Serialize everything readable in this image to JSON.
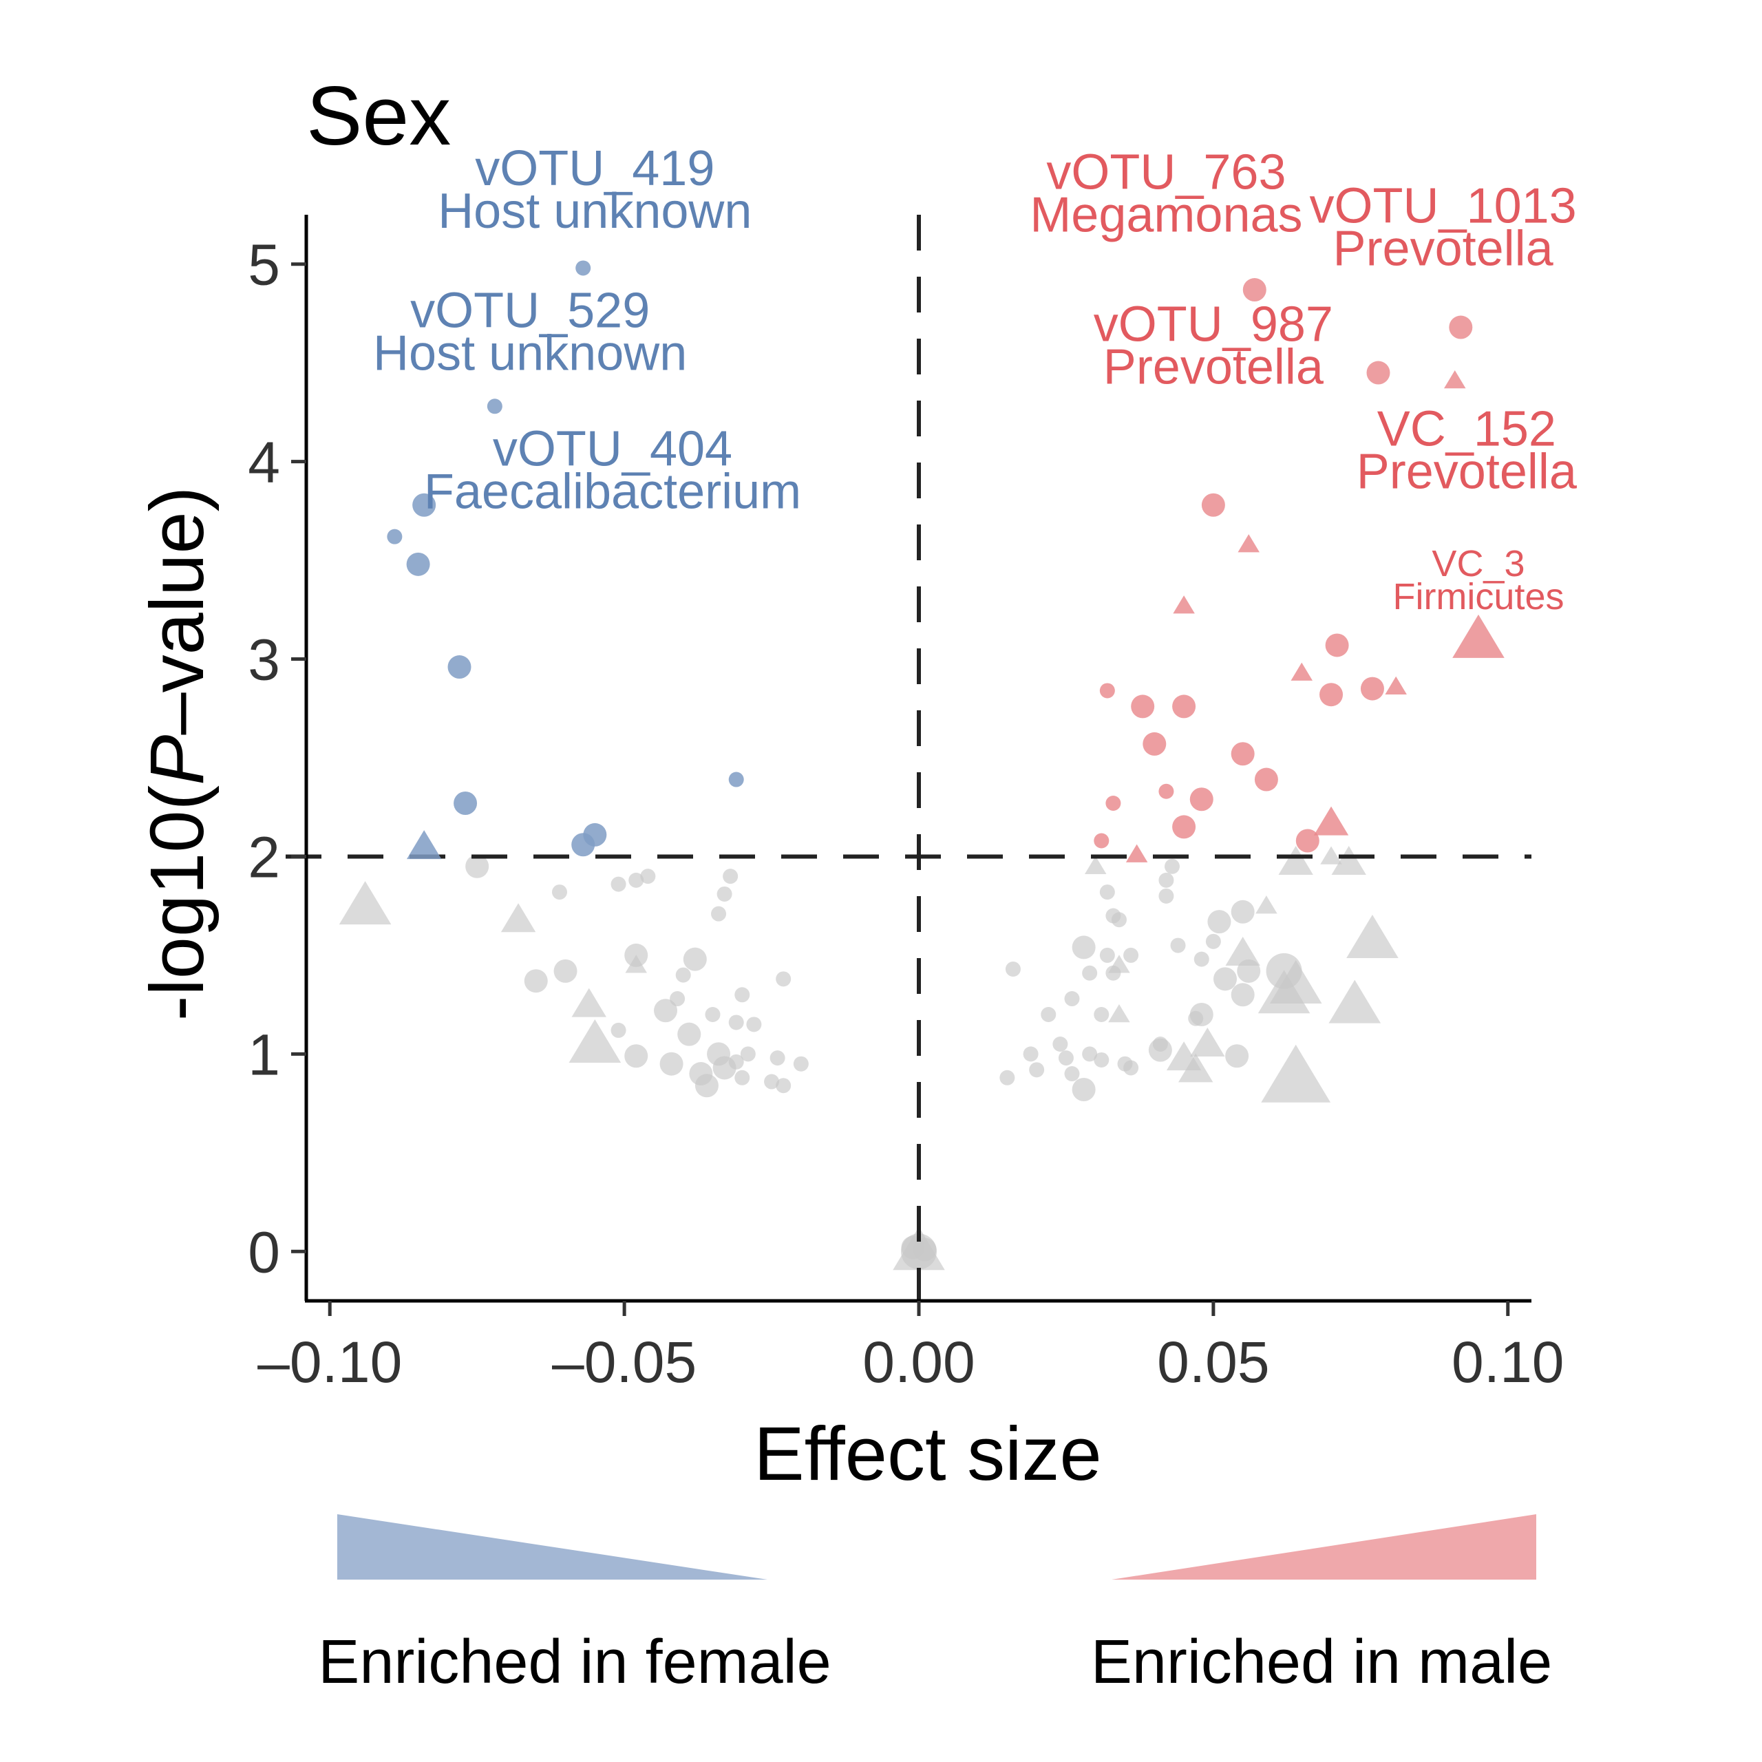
{
  "chart_data": {
    "type": "scatter",
    "title": "Sex",
    "xlabel": "Effect size",
    "ylabel_prefix": "-log10(",
    "ylabel_italic": "P",
    "ylabel_suffix": "–value)",
    "xlim": [
      -0.104,
      0.104
    ],
    "ylim": [
      -0.25,
      5.25
    ],
    "x_ticks": [
      -0.1,
      -0.05,
      0.0,
      0.05,
      0.1
    ],
    "x_tick_labels": [
      "–0.10",
      "–0.05",
      "0.00",
      "0.05",
      "0.10"
    ],
    "y_ticks": [
      0,
      1,
      2,
      3,
      4,
      5
    ],
    "y_tick_labels": [
      "0",
      "1",
      "2",
      "3",
      "4",
      "5"
    ],
    "threshold_y": 2,
    "threshold_x": 0,
    "grid": false,
    "colors": {
      "female": "#7f9cc4",
      "male": "#e8868a",
      "ns": "#c8c8c8",
      "female_text": "#5e82b3",
      "male_text": "#e25a5f"
    },
    "legend": {
      "female_label": "Enriched in female",
      "male_label": "Enriched in male"
    },
    "series": [
      {
        "group": "female",
        "points": [
          {
            "x": -0.057,
            "y": 4.98,
            "shape": "circle",
            "size": 1
          },
          {
            "x": -0.072,
            "y": 4.28,
            "shape": "circle",
            "size": 1
          },
          {
            "x": -0.084,
            "y": 3.78,
            "shape": "circle",
            "size": 2
          },
          {
            "x": -0.089,
            "y": 3.62,
            "shape": "circle",
            "size": 1
          },
          {
            "x": -0.085,
            "y": 3.48,
            "shape": "circle",
            "size": 2
          },
          {
            "x": -0.078,
            "y": 2.96,
            "shape": "circle",
            "size": 2
          },
          {
            "x": -0.077,
            "y": 2.27,
            "shape": "circle",
            "size": 2
          },
          {
            "x": -0.031,
            "y": 2.39,
            "shape": "circle",
            "size": 1
          },
          {
            "x": -0.055,
            "y": 2.11,
            "shape": "circle",
            "size": 2
          },
          {
            "x": -0.057,
            "y": 2.06,
            "shape": "circle",
            "size": 2
          },
          {
            "x": -0.084,
            "y": 2.05,
            "shape": "triangle",
            "size": 2
          }
        ]
      },
      {
        "group": "male",
        "points": [
          {
            "x": 0.057,
            "y": 4.87,
            "shape": "circle",
            "size": 2
          },
          {
            "x": 0.092,
            "y": 4.68,
            "shape": "circle",
            "size": 2
          },
          {
            "x": 0.078,
            "y": 4.45,
            "shape": "circle",
            "size": 2
          },
          {
            "x": 0.091,
            "y": 4.41,
            "shape": "triangle",
            "size": 1
          },
          {
            "x": 0.05,
            "y": 3.78,
            "shape": "circle",
            "size": 2
          },
          {
            "x": 0.056,
            "y": 3.58,
            "shape": "triangle",
            "size": 1
          },
          {
            "x": 0.045,
            "y": 3.27,
            "shape": "triangle",
            "size": 1
          },
          {
            "x": 0.095,
            "y": 3.1,
            "shape": "triangle",
            "size": 3
          },
          {
            "x": 0.071,
            "y": 3.07,
            "shape": "circle",
            "size": 2
          },
          {
            "x": 0.065,
            "y": 2.93,
            "shape": "triangle",
            "size": 1
          },
          {
            "x": 0.07,
            "y": 2.82,
            "shape": "circle",
            "size": 2
          },
          {
            "x": 0.077,
            "y": 2.85,
            "shape": "circle",
            "size": 2
          },
          {
            "x": 0.081,
            "y": 2.86,
            "shape": "triangle",
            "size": 1
          },
          {
            "x": 0.032,
            "y": 2.84,
            "shape": "circle",
            "size": 1
          },
          {
            "x": 0.038,
            "y": 2.76,
            "shape": "circle",
            "size": 2
          },
          {
            "x": 0.045,
            "y": 2.76,
            "shape": "circle",
            "size": 2
          },
          {
            "x": 0.04,
            "y": 2.57,
            "shape": "circle",
            "size": 2
          },
          {
            "x": 0.055,
            "y": 2.52,
            "shape": "circle",
            "size": 2
          },
          {
            "x": 0.059,
            "y": 2.39,
            "shape": "circle",
            "size": 2
          },
          {
            "x": 0.042,
            "y": 2.33,
            "shape": "circle",
            "size": 1
          },
          {
            "x": 0.048,
            "y": 2.29,
            "shape": "circle",
            "size": 2
          },
          {
            "x": 0.033,
            "y": 2.27,
            "shape": "circle",
            "size": 1
          },
          {
            "x": 0.045,
            "y": 2.15,
            "shape": "circle",
            "size": 2
          },
          {
            "x": 0.07,
            "y": 2.17,
            "shape": "triangle",
            "size": 2
          },
          {
            "x": 0.031,
            "y": 2.08,
            "shape": "circle",
            "size": 1
          },
          {
            "x": 0.066,
            "y": 2.08,
            "shape": "circle",
            "size": 2
          },
          {
            "x": 0.037,
            "y": 2.01,
            "shape": "triangle",
            "size": 1
          }
        ]
      },
      {
        "group": "ns",
        "points": [
          {
            "x": -0.094,
            "y": 1.75,
            "shape": "triangle",
            "size": 3
          },
          {
            "x": -0.075,
            "y": 1.95,
            "shape": "circle",
            "size": 2
          },
          {
            "x": -0.068,
            "y": 1.68,
            "shape": "triangle",
            "size": 2
          },
          {
            "x": -0.061,
            "y": 1.82,
            "shape": "circle",
            "size": 1
          },
          {
            "x": -0.065,
            "y": 1.37,
            "shape": "circle",
            "size": 2
          },
          {
            "x": -0.06,
            "y": 1.42,
            "shape": "circle",
            "size": 2
          },
          {
            "x": -0.056,
            "y": 1.25,
            "shape": "triangle",
            "size": 2
          },
          {
            "x": -0.055,
            "y": 1.05,
            "shape": "triangle",
            "size": 3
          },
          {
            "x": -0.051,
            "y": 1.86,
            "shape": "circle",
            "size": 1
          },
          {
            "x": -0.048,
            "y": 1.88,
            "shape": "circle",
            "size": 1
          },
          {
            "x": -0.046,
            "y": 1.9,
            "shape": "circle",
            "size": 1
          },
          {
            "x": -0.048,
            "y": 1.5,
            "shape": "circle",
            "size": 2
          },
          {
            "x": -0.048,
            "y": 1.45,
            "shape": "triangle",
            "size": 1
          },
          {
            "x": -0.051,
            "y": 1.12,
            "shape": "circle",
            "size": 1
          },
          {
            "x": -0.048,
            "y": 0.99,
            "shape": "circle",
            "size": 2
          },
          {
            "x": -0.043,
            "y": 1.22,
            "shape": "circle",
            "size": 2
          },
          {
            "x": -0.041,
            "y": 1.28,
            "shape": "circle",
            "size": 1
          },
          {
            "x": -0.039,
            "y": 1.1,
            "shape": "circle",
            "size": 2
          },
          {
            "x": -0.042,
            "y": 0.95,
            "shape": "circle",
            "size": 2
          },
          {
            "x": -0.038,
            "y": 1.48,
            "shape": "circle",
            "size": 2
          },
          {
            "x": -0.04,
            "y": 1.4,
            "shape": "circle",
            "size": 1
          },
          {
            "x": -0.037,
            "y": 0.9,
            "shape": "circle",
            "size": 2
          },
          {
            "x": -0.035,
            "y": 1.2,
            "shape": "circle",
            "size": 1
          },
          {
            "x": -0.036,
            "y": 0.84,
            "shape": "circle",
            "size": 2
          },
          {
            "x": -0.034,
            "y": 1.0,
            "shape": "circle",
            "size": 2
          },
          {
            "x": -0.033,
            "y": 0.93,
            "shape": "circle",
            "size": 2
          },
          {
            "x": -0.033,
            "y": 1.81,
            "shape": "circle",
            "size": 1
          },
          {
            "x": -0.034,
            "y": 1.71,
            "shape": "circle",
            "size": 1
          },
          {
            "x": -0.032,
            "y": 1.9,
            "shape": "circle",
            "size": 1
          },
          {
            "x": -0.031,
            "y": 1.16,
            "shape": "circle",
            "size": 1
          },
          {
            "x": -0.03,
            "y": 1.3,
            "shape": "circle",
            "size": 1
          },
          {
            "x": -0.028,
            "y": 1.15,
            "shape": "circle",
            "size": 1
          },
          {
            "x": -0.031,
            "y": 0.96,
            "shape": "circle",
            "size": 1
          },
          {
            "x": -0.03,
            "y": 0.88,
            "shape": "circle",
            "size": 1
          },
          {
            "x": -0.029,
            "y": 1.0,
            "shape": "circle",
            "size": 1
          },
          {
            "x": -0.023,
            "y": 1.38,
            "shape": "circle",
            "size": 1
          },
          {
            "x": -0.024,
            "y": 0.98,
            "shape": "circle",
            "size": 1
          },
          {
            "x": -0.025,
            "y": 0.86,
            "shape": "circle",
            "size": 1
          },
          {
            "x": -0.023,
            "y": 0.84,
            "shape": "circle",
            "size": 1
          },
          {
            "x": -0.02,
            "y": 0.95,
            "shape": "circle",
            "size": 1
          },
          {
            "x": 0.016,
            "y": 1.43,
            "shape": "circle",
            "size": 1
          },
          {
            "x": 0.015,
            "y": 0.88,
            "shape": "circle",
            "size": 1
          },
          {
            "x": 0.019,
            "y": 1.0,
            "shape": "circle",
            "size": 1
          },
          {
            "x": 0.02,
            "y": 0.92,
            "shape": "circle",
            "size": 1
          },
          {
            "x": 0.022,
            "y": 1.2,
            "shape": "circle",
            "size": 1
          },
          {
            "x": 0.024,
            "y": 1.05,
            "shape": "circle",
            "size": 1
          },
          {
            "x": 0.025,
            "y": 0.98,
            "shape": "circle",
            "size": 1
          },
          {
            "x": 0.026,
            "y": 0.9,
            "shape": "circle",
            "size": 1
          },
          {
            "x": 0.026,
            "y": 1.28,
            "shape": "circle",
            "size": 1
          },
          {
            "x": 0.028,
            "y": 0.82,
            "shape": "circle",
            "size": 2
          },
          {
            "x": 0.029,
            "y": 1.0,
            "shape": "circle",
            "size": 1
          },
          {
            "x": 0.028,
            "y": 1.54,
            "shape": "circle",
            "size": 2
          },
          {
            "x": 0.029,
            "y": 1.41,
            "shape": "circle",
            "size": 1
          },
          {
            "x": 0.031,
            "y": 1.2,
            "shape": "circle",
            "size": 1
          },
          {
            "x": 0.031,
            "y": 0.97,
            "shape": "circle",
            "size": 1
          },
          {
            "x": 0.03,
            "y": 1.95,
            "shape": "triangle",
            "size": 1
          },
          {
            "x": 0.032,
            "y": 1.82,
            "shape": "circle",
            "size": 1
          },
          {
            "x": 0.032,
            "y": 1.5,
            "shape": "circle",
            "size": 1
          },
          {
            "x": 0.033,
            "y": 1.41,
            "shape": "circle",
            "size": 1
          },
          {
            "x": 0.033,
            "y": 1.7,
            "shape": "circle",
            "size": 1
          },
          {
            "x": 0.034,
            "y": 1.68,
            "shape": "circle",
            "size": 1
          },
          {
            "x": 0.034,
            "y": 1.45,
            "shape": "triangle",
            "size": 1
          },
          {
            "x": 0.034,
            "y": 1.2,
            "shape": "triangle",
            "size": 1
          },
          {
            "x": 0.035,
            "y": 0.95,
            "shape": "circle",
            "size": 1
          },
          {
            "x": 0.036,
            "y": 0.93,
            "shape": "circle",
            "size": 1
          },
          {
            "x": 0.036,
            "y": 1.5,
            "shape": "circle",
            "size": 1
          },
          {
            "x": 0.042,
            "y": 1.88,
            "shape": "circle",
            "size": 1
          },
          {
            "x": 0.042,
            "y": 1.8,
            "shape": "circle",
            "size": 1
          },
          {
            "x": 0.043,
            "y": 1.95,
            "shape": "circle",
            "size": 1
          },
          {
            "x": 0.041,
            "y": 1.02,
            "shape": "circle",
            "size": 2
          },
          {
            "x": 0.041,
            "y": 1.05,
            "shape": "circle",
            "size": 1
          },
          {
            "x": 0.044,
            "y": 1.55,
            "shape": "circle",
            "size": 1
          },
          {
            "x": 0.045,
            "y": 0.98,
            "shape": "triangle",
            "size": 2
          },
          {
            "x": 0.047,
            "y": 0.92,
            "shape": "triangle",
            "size": 2
          },
          {
            "x": 0.048,
            "y": 1.2,
            "shape": "circle",
            "size": 2
          },
          {
            "x": 0.047,
            "y": 1.18,
            "shape": "circle",
            "size": 1
          },
          {
            "x": 0.048,
            "y": 1.48,
            "shape": "circle",
            "size": 1
          },
          {
            "x": 0.049,
            "y": 1.05,
            "shape": "triangle",
            "size": 2
          },
          {
            "x": 0.05,
            "y": 1.57,
            "shape": "circle",
            "size": 1
          },
          {
            "x": 0.051,
            "y": 1.67,
            "shape": "circle",
            "size": 2
          },
          {
            "x": 0.052,
            "y": 1.38,
            "shape": "circle",
            "size": 2
          },
          {
            "x": 0.054,
            "y": 0.99,
            "shape": "circle",
            "size": 2
          },
          {
            "x": 0.055,
            "y": 1.51,
            "shape": "triangle",
            "size": 2
          },
          {
            "x": 0.055,
            "y": 1.72,
            "shape": "circle",
            "size": 2
          },
          {
            "x": 0.059,
            "y": 1.75,
            "shape": "triangle",
            "size": 1
          },
          {
            "x": 0.055,
            "y": 1.3,
            "shape": "circle",
            "size": 2
          },
          {
            "x": 0.056,
            "y": 1.42,
            "shape": "circle",
            "size": 2
          },
          {
            "x": 0.062,
            "y": 1.42,
            "shape": "circle",
            "size": 3
          },
          {
            "x": 0.062,
            "y": 1.3,
            "shape": "triangle",
            "size": 3
          },
          {
            "x": 0.064,
            "y": 1.35,
            "shape": "triangle",
            "size": 3
          },
          {
            "x": 0.064,
            "y": 1.97,
            "shape": "triangle",
            "size": 2
          },
          {
            "x": 0.07,
            "y": 2.0,
            "shape": "triangle",
            "size": 1
          },
          {
            "x": 0.073,
            "y": 1.97,
            "shape": "triangle",
            "size": 2
          },
          {
            "x": 0.074,
            "y": 1.25,
            "shape": "triangle",
            "size": 3
          },
          {
            "x": 0.077,
            "y": 1.58,
            "shape": "triangle",
            "size": 3
          },
          {
            "x": 0.064,
            "y": 0.88,
            "shape": "triangle",
            "size": 4
          },
          {
            "x": 0.0,
            "y": 0.0,
            "shape": "triangle",
            "size": 3
          },
          {
            "x": 0.0,
            "y": 0.0,
            "shape": "circle",
            "size": 3
          },
          {
            "x": -0.001,
            "y": 0.02,
            "shape": "circle",
            "size": 2
          },
          {
            "x": 0.001,
            "y": 0.01,
            "shape": "circle",
            "size": 2
          }
        ]
      }
    ],
    "labels": [
      {
        "group": "female",
        "line1": "vOTU_419",
        "line2": "Host unknown",
        "x": -0.055,
        "y": 5.4,
        "size": "large"
      },
      {
        "group": "female",
        "line1": "vOTU_529",
        "line2": "Host unknown",
        "x": -0.066,
        "y": 4.68,
        "size": "large"
      },
      {
        "group": "female",
        "line1": "vOTU_404",
        "line2": "Faecalibacterium",
        "x": -0.052,
        "y": 3.98,
        "size": "large"
      },
      {
        "group": "male",
        "line1": "vOTU_763",
        "line2": "Megamonas",
        "x": 0.042,
        "y": 5.38,
        "size": "large"
      },
      {
        "group": "male",
        "line1": "vOTU_1013",
        "line2": "Prevotella",
        "x": 0.089,
        "y": 5.21,
        "size": "large"
      },
      {
        "group": "male",
        "line1": "vOTU_987",
        "line2": "Prevotella",
        "x": 0.05,
        "y": 4.61,
        "size": "large"
      },
      {
        "group": "male",
        "line1": "VC_152",
        "line2": "Prevotella",
        "x": 0.093,
        "y": 4.08,
        "size": "large"
      },
      {
        "group": "male",
        "line1": "VC_3",
        "line2": "Firmicutes",
        "x": 0.095,
        "y": 3.42,
        "size": "small"
      }
    ]
  }
}
